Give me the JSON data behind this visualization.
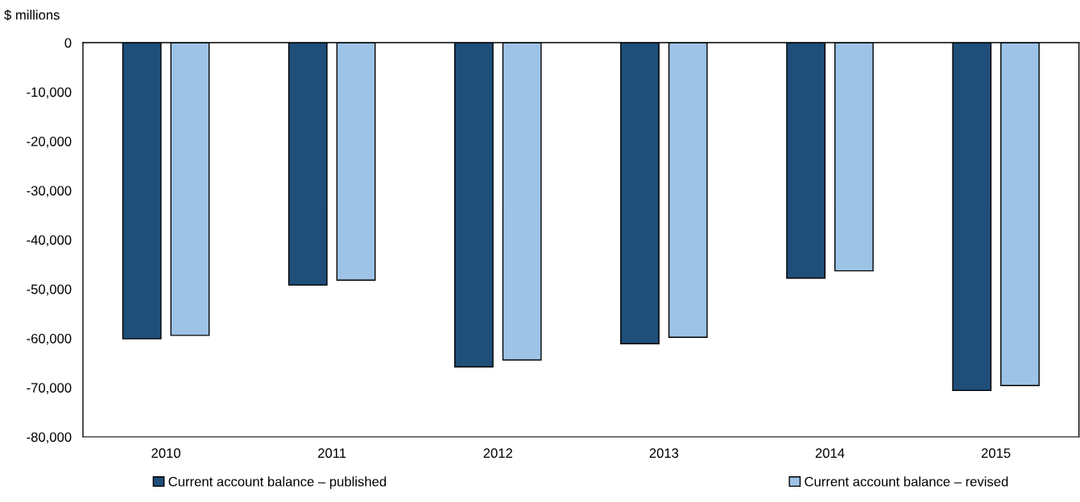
{
  "chart_data": {
    "type": "bar",
    "ylabel": "$ millions",
    "categories": [
      "2010",
      "2011",
      "2012",
      "2013",
      "2014",
      "2015"
    ],
    "series": [
      {
        "name": "Current account balance – published",
        "color": "#1f4e79",
        "values": [
          -60100,
          -49200,
          -65800,
          -61100,
          -47800,
          -70600
        ]
      },
      {
        "name": "Current account balance – revised",
        "color": "#9dc3e6",
        "values": [
          -59400,
          -48200,
          -64400,
          -59800,
          -46300,
          -69600
        ]
      }
    ],
    "ylim": [
      -80000,
      0
    ],
    "yticks": [
      {
        "value": -80000,
        "label": "-80,000"
      },
      {
        "value": -70000,
        "label": "-70,000"
      },
      {
        "value": -60000,
        "label": "-60,000"
      },
      {
        "value": -50000,
        "label": "-50,000"
      },
      {
        "value": -40000,
        "label": "-40,000"
      },
      {
        "value": -30000,
        "label": "-30,000"
      },
      {
        "value": -20000,
        "label": "-20,000"
      },
      {
        "value": -10000,
        "label": "-10,000"
      },
      0
    ],
    "grid": false,
    "legend": "bottom"
  }
}
